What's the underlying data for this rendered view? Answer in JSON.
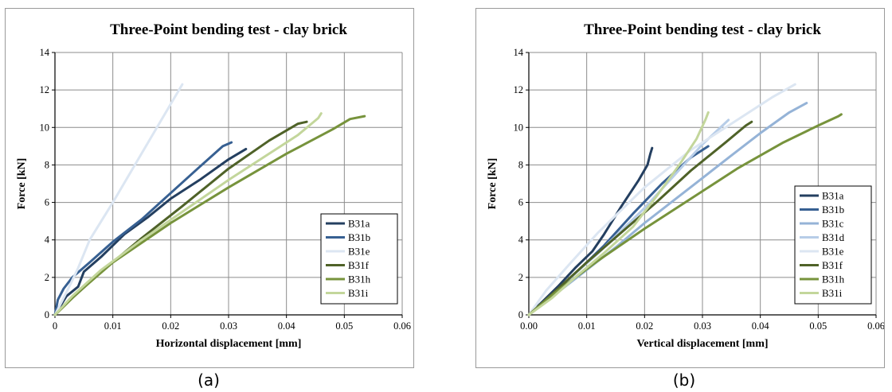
{
  "chart_data": [
    {
      "type": "line",
      "panel_label": "(a)",
      "title": "Three-Point bending test - clay brick",
      "xlabel": "Horizontal displacement [mm]",
      "ylabel": "Force [kN]",
      "xlim": [
        0,
        0.06
      ],
      "ylim": [
        0,
        14
      ],
      "xticks": [
        0,
        0.01,
        0.02,
        0.03,
        0.04,
        0.05,
        0.06
      ],
      "xtick_labels": [
        "0",
        "0.01",
        "0.02",
        "0.03",
        "0.04",
        "0.05",
        "0.06"
      ],
      "yticks": [
        0,
        2,
        4,
        6,
        8,
        10,
        12,
        14
      ],
      "ytick_labels": [
        "0",
        "2",
        "4",
        "6",
        "8",
        "10",
        "12",
        "14"
      ],
      "grid": true,
      "legend_position": "bottom-right",
      "series": [
        {
          "name": "B31a",
          "color": "#243f60",
          "x": [
            0,
            0.002,
            0.004,
            0.005,
            0.008,
            0.012,
            0.016,
            0.02,
            0.025,
            0.03,
            0.033
          ],
          "y": [
            0,
            1.0,
            1.5,
            2.3,
            3.1,
            4.3,
            5.2,
            6.2,
            7.2,
            8.3,
            8.85
          ]
        },
        {
          "name": "B31b",
          "color": "#376092",
          "x": [
            0,
            0.0005,
            0.0015,
            0.003,
            0.006,
            0.01,
            0.015,
            0.02,
            0.025,
            0.029,
            0.0305
          ],
          "y": [
            0,
            0.8,
            1.4,
            2.0,
            2.8,
            3.9,
            5.1,
            6.5,
            7.9,
            9.0,
            9.2
          ]
        },
        {
          "name": "B31e",
          "color": "#dce6f2",
          "x": [
            0,
            0.002,
            0.004,
            0.006,
            0.01,
            0.014,
            0.018,
            0.022
          ],
          "y": [
            0,
            1.2,
            2.5,
            4.0,
            6.0,
            8.1,
            10.2,
            12.3
          ]
        },
        {
          "name": "B31f",
          "color": "#4f6228",
          "x": [
            0,
            0.003,
            0.008,
            0.015,
            0.022,
            0.03,
            0.037,
            0.042,
            0.0435
          ],
          "y": [
            0,
            0.9,
            2.3,
            4.1,
            5.8,
            7.8,
            9.3,
            10.2,
            10.3
          ]
        },
        {
          "name": "B31h",
          "color": "#77933c",
          "x": [
            0,
            0.004,
            0.01,
            0.02,
            0.03,
            0.04,
            0.048,
            0.051,
            0.0535
          ],
          "y": [
            0,
            1.2,
            2.8,
            4.9,
            6.8,
            8.6,
            9.9,
            10.45,
            10.6
          ]
        },
        {
          "name": "B31i",
          "color": "#c3d69b",
          "x": [
            0,
            0.003,
            0.008,
            0.015,
            0.022,
            0.03,
            0.038,
            0.042,
            0.0455,
            0.046
          ],
          "y": [
            0,
            1.0,
            2.4,
            4.0,
            5.5,
            7.2,
            8.8,
            9.6,
            10.5,
            10.75
          ]
        }
      ]
    },
    {
      "type": "line",
      "panel_label": "(b)",
      "title": "Three-Point bending test - clay brick",
      "xlabel": "Vertical displacement [mm]",
      "ylabel": "Force [kN]",
      "xlim": [
        0,
        0.06
      ],
      "ylim": [
        0,
        14
      ],
      "xticks": [
        0,
        0.01,
        0.02,
        0.03,
        0.04,
        0.05,
        0.06
      ],
      "xtick_labels": [
        "0.00",
        "0.01",
        "0.02",
        "0.03",
        "0.04",
        "0.05",
        "0.06"
      ],
      "yticks": [
        0,
        2,
        4,
        6,
        8,
        10,
        12,
        14
      ],
      "ytick_labels": [
        "0",
        "2",
        "4",
        "6",
        "8",
        "10",
        "12",
        "14"
      ],
      "grid": true,
      "legend_position": "bottom-right",
      "series": [
        {
          "name": "B31a",
          "color": "#243f60",
          "x": [
            0,
            0.002,
            0.005,
            0.008,
            0.011,
            0.013,
            0.016,
            0.019,
            0.0205,
            0.021,
            0.0213
          ],
          "y": [
            0,
            0.6,
            1.5,
            2.5,
            3.4,
            4.3,
            5.8,
            7.2,
            8.0,
            8.6,
            8.9
          ]
        },
        {
          "name": "B31b",
          "color": "#376092",
          "x": [
            0,
            0.003,
            0.008,
            0.013,
            0.018,
            0.023,
            0.028,
            0.031
          ],
          "y": [
            0,
            0.8,
            2.2,
            3.7,
            5.4,
            7.0,
            8.4,
            9.0
          ]
        },
        {
          "name": "B31c",
          "color": "#95b3d7",
          "x": [
            0,
            0.005,
            0.01,
            0.015,
            0.02,
            0.025,
            0.03,
            0.035,
            0.04,
            0.045,
            0.048
          ],
          "y": [
            0,
            1.2,
            2.4,
            3.6,
            4.9,
            6.1,
            7.3,
            8.5,
            9.7,
            10.8,
            11.3
          ]
        },
        {
          "name": "B31d",
          "color": "#b7cde8",
          "x": [
            0,
            0.004,
            0.008,
            0.012,
            0.016,
            0.02,
            0.025,
            0.03,
            0.0345
          ],
          "y": [
            0,
            1.1,
            2.2,
            3.3,
            4.5,
            5.7,
            7.4,
            9.1,
            10.4
          ]
        },
        {
          "name": "B31e",
          "color": "#dce6f2",
          "x": [
            0,
            0.003,
            0.007,
            0.012,
            0.02,
            0.028,
            0.036,
            0.042,
            0.046
          ],
          "y": [
            0,
            1.3,
            2.7,
            4.4,
            6.8,
            8.8,
            10.4,
            11.6,
            12.3
          ]
        },
        {
          "name": "B31f",
          "color": "#4f6228",
          "x": [
            0,
            0.004,
            0.01,
            0.016,
            0.022,
            0.028,
            0.034,
            0.0375,
            0.0385
          ],
          "y": [
            0,
            1.1,
            2.8,
            4.4,
            6.0,
            7.7,
            9.2,
            10.1,
            10.3
          ]
        },
        {
          "name": "B31h",
          "color": "#77933c",
          "x": [
            0,
            0.005,
            0.012,
            0.02,
            0.028,
            0.036,
            0.044,
            0.05,
            0.0535,
            0.054
          ],
          "y": [
            0,
            1.3,
            2.9,
            4.6,
            6.2,
            7.8,
            9.2,
            10.1,
            10.6,
            10.7
          ]
        },
        {
          "name": "B31i",
          "color": "#c3d69b",
          "x": [
            0,
            0.004,
            0.008,
            0.013,
            0.018,
            0.022,
            0.026,
            0.029,
            0.0305,
            0.031
          ],
          "y": [
            0,
            0.9,
            2.0,
            3.3,
            4.7,
            6.3,
            8.0,
            9.4,
            10.4,
            10.8
          ]
        }
      ]
    }
  ]
}
